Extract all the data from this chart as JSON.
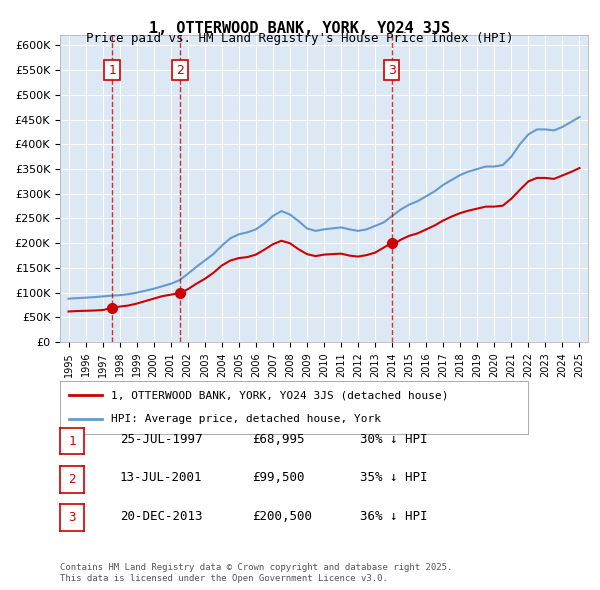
{
  "title": "1, OTTERWOOD BANK, YORK, YO24 3JS",
  "subtitle": "Price paid vs. HM Land Registry's House Price Index (HPI)",
  "ylabel": "",
  "ylim": [
    0,
    620000
  ],
  "yticks": [
    0,
    50000,
    100000,
    150000,
    200000,
    250000,
    300000,
    350000,
    400000,
    450000,
    500000,
    550000,
    600000
  ],
  "xlim_start": 1994.5,
  "xlim_end": 2025.5,
  "background_color": "#dce9f5",
  "plot_bg": "#dce9f5",
  "grid_color": "#ffffff",
  "sale_dates": [
    1997.56,
    2001.54,
    2013.97
  ],
  "sale_prices": [
    68995,
    99500,
    200500
  ],
  "sale_labels": [
    "1",
    "2",
    "3"
  ],
  "legend_line1": "1, OTTERWOOD BANK, YORK, YO24 3JS (detached house)",
  "legend_line2": "HPI: Average price, detached house, York",
  "table_data": [
    [
      "1",
      "25-JUL-1997",
      "£68,995",
      "30% ↓ HPI"
    ],
    [
      "2",
      "13-JUL-2001",
      "£99,500",
      "35% ↓ HPI"
    ],
    [
      "3",
      "20-DEC-2013",
      "£200,500",
      "36% ↓ HPI"
    ]
  ],
  "footnote": "Contains HM Land Registry data © Crown copyright and database right 2025.\nThis data is licensed under the Open Government Licence v3.0.",
  "hpi_years": [
    1995,
    1995.5,
    1996,
    1996.5,
    1997,
    1997.5,
    1998,
    1998.5,
    1999,
    1999.5,
    2000,
    2000.5,
    2001,
    2001.5,
    2002,
    2002.5,
    2003,
    2003.5,
    2004,
    2004.5,
    2005,
    2005.5,
    2006,
    2006.5,
    2007,
    2007.5,
    2008,
    2008.5,
    2009,
    2009.5,
    2010,
    2010.5,
    2011,
    2011.5,
    2012,
    2012.5,
    2013,
    2013.5,
    2014,
    2014.5,
    2015,
    2015.5,
    2016,
    2016.5,
    2017,
    2017.5,
    2018,
    2018.5,
    2019,
    2019.5,
    2020,
    2020.5,
    2021,
    2021.5,
    2022,
    2022.5,
    2023,
    2023.5,
    2024,
    2024.5,
    2025
  ],
  "hpi_values": [
    88000,
    89000,
    90000,
    91000,
    92500,
    94000,
    95000,
    97000,
    100000,
    104000,
    108000,
    113000,
    118000,
    125000,
    138000,
    152000,
    165000,
    178000,
    195000,
    210000,
    218000,
    222000,
    228000,
    240000,
    255000,
    265000,
    258000,
    245000,
    230000,
    225000,
    228000,
    230000,
    232000,
    228000,
    225000,
    228000,
    235000,
    242000,
    255000,
    268000,
    278000,
    285000,
    295000,
    305000,
    318000,
    328000,
    338000,
    345000,
    350000,
    355000,
    355000,
    358000,
    375000,
    400000,
    420000,
    430000,
    430000,
    428000,
    435000,
    445000,
    455000
  ],
  "red_line_years": [
    1995,
    1995.5,
    1996,
    1996.5,
    1997,
    1997.56,
    1998,
    1998.5,
    1999,
    1999.5,
    2000,
    2000.5,
    2001,
    2001.54,
    2002,
    2002.5,
    2003,
    2003.5,
    2004,
    2004.5,
    2005,
    2005.5,
    2006,
    2006.5,
    2007,
    2007.5,
    2008,
    2008.5,
    2009,
    2009.5,
    2010,
    2010.5,
    2011,
    2011.5,
    2012,
    2012.5,
    2013,
    2013.97,
    2014,
    2014.5,
    2015,
    2015.5,
    2016,
    2016.5,
    2017,
    2017.5,
    2018,
    2018.5,
    2019,
    2019.5,
    2020,
    2020.5,
    2021,
    2021.5,
    2022,
    2022.5,
    2023,
    2023.5,
    2024,
    2024.5,
    2025
  ],
  "red_line_values": [
    62000,
    63000,
    63500,
    64000,
    65000,
    68995,
    72000,
    74000,
    78000,
    83000,
    88000,
    93000,
    96000,
    99500,
    107000,
    118000,
    128000,
    140000,
    155000,
    165000,
    170000,
    172000,
    177000,
    187000,
    198000,
    205000,
    200000,
    188000,
    178000,
    174000,
    177000,
    178000,
    179000,
    175000,
    173000,
    176000,
    181000,
    200500,
    196000,
    207000,
    215000,
    220000,
    228000,
    236000,
    246000,
    254000,
    261000,
    266000,
    270000,
    274000,
    274000,
    276000,
    290000,
    308000,
    325000,
    332000,
    332000,
    330000,
    337000,
    344000,
    352000
  ],
  "red_color": "#cc0000",
  "blue_color": "#6699cc",
  "marker_color": "#cc0000",
  "box_color": "#cc0000",
  "dashed_color": "#cc0000"
}
